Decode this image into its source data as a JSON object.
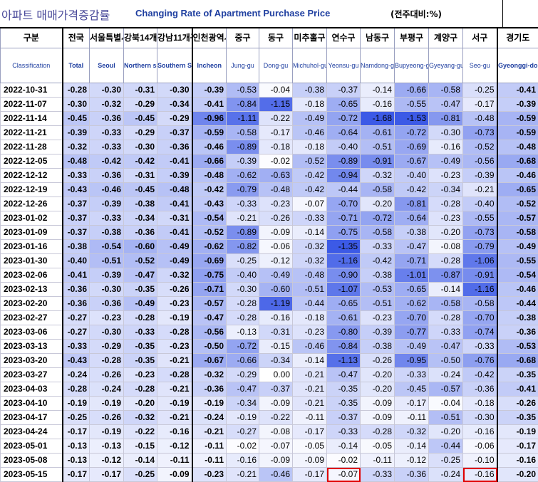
{
  "title": {
    "korean": "아파트 매매가격증감률",
    "english": "Changing Rate of Apartment Purchase Price",
    "unit": "(전주대비:%)"
  },
  "columns": [
    {
      "ko": "구분",
      "en": "Classification"
    },
    {
      "ko": "전국",
      "en": "Total"
    },
    {
      "ko": "서울특별시",
      "en": "Seoul"
    },
    {
      "ko": "강북14개구",
      "en": "Northern seoul"
    },
    {
      "ko": "강남11개구",
      "en": "Southern Seoul"
    },
    {
      "ko": "인천광역시",
      "en": "Incheon"
    },
    {
      "ko": "중구",
      "en": "Jung-gu"
    },
    {
      "ko": "동구",
      "en": "Dong-gu"
    },
    {
      "ko": "미추홀구",
      "en": "Michuhol-gu"
    },
    {
      "ko": "연수구",
      "en": "Yeonsu-gu"
    },
    {
      "ko": "남동구",
      "en": "Namdong-gu"
    },
    {
      "ko": "부평구",
      "en": "Bupyeong-gu"
    },
    {
      "ko": "계양구",
      "en": "Gyeyang-gu"
    },
    {
      "ko": "서구",
      "en": "Seo-gu"
    },
    {
      "ko": "경기도",
      "en": "Gyeonggi-do"
    }
  ],
  "rows": [
    {
      "date": "2022-10-31",
      "values": [
        "-0.28",
        "-0.30",
        "-0.31",
        "-0.30",
        "-0.39",
        "-0.53",
        "-0.04",
        "-0.38",
        "-0.37",
        "-0.14",
        "-0.66",
        "-0.58",
        "-0.25",
        "-0.41"
      ]
    },
    {
      "date": "2022-11-07",
      "values": [
        "-0.30",
        "-0.32",
        "-0.29",
        "-0.34",
        "-0.41",
        "-0.84",
        "-1.15",
        "-0.18",
        "-0.65",
        "-0.16",
        "-0.55",
        "-0.47",
        "-0.17",
        "-0.39"
      ]
    },
    {
      "date": "2022-11-14",
      "values": [
        "-0.45",
        "-0.36",
        "-0.45",
        "-0.29",
        "-0.96",
        "-1.11",
        "-0.22",
        "-0.49",
        "-0.72",
        "-1.68",
        "-1.53",
        "-0.81",
        "-0.48",
        "-0.59"
      ]
    },
    {
      "date": "2022-11-21",
      "values": [
        "-0.39",
        "-0.33",
        "-0.29",
        "-0.37",
        "-0.59",
        "-0.58",
        "-0.17",
        "-0.46",
        "-0.64",
        "-0.61",
        "-0.72",
        "-0.30",
        "-0.73",
        "-0.59"
      ]
    },
    {
      "date": "2022-11-28",
      "values": [
        "-0.32",
        "-0.33",
        "-0.30",
        "-0.36",
        "-0.46",
        "-0.89",
        "-0.18",
        "-0.18",
        "-0.40",
        "-0.51",
        "-0.69",
        "-0.16",
        "-0.52",
        "-0.48"
      ]
    },
    {
      "date": "2022-12-05",
      "values": [
        "-0.48",
        "-0.42",
        "-0.42",
        "-0.41",
        "-0.66",
        "-0.39",
        "-0.02",
        "-0.52",
        "-0.89",
        "-0.91",
        "-0.67",
        "-0.49",
        "-0.56",
        "-0.68"
      ]
    },
    {
      "date": "2022-12-12",
      "values": [
        "-0.33",
        "-0.36",
        "-0.31",
        "-0.39",
        "-0.48",
        "-0.62",
        "-0.63",
        "-0.42",
        "-0.94",
        "-0.32",
        "-0.40",
        "-0.23",
        "-0.39",
        "-0.46"
      ]
    },
    {
      "date": "2022-12-19",
      "values": [
        "-0.43",
        "-0.46",
        "-0.45",
        "-0.48",
        "-0.42",
        "-0.79",
        "-0.48",
        "-0.42",
        "-0.44",
        "-0.58",
        "-0.42",
        "-0.34",
        "-0.21",
        "-0.65"
      ]
    },
    {
      "date": "2022-12-26",
      "values": [
        "-0.37",
        "-0.39",
        "-0.38",
        "-0.41",
        "-0.43",
        "-0.33",
        "-0.23",
        "-0.07",
        "-0.70",
        "-0.20",
        "-0.81",
        "-0.28",
        "-0.40",
        "-0.52"
      ]
    },
    {
      "date": "2023-01-02",
      "values": [
        "-0.37",
        "-0.33",
        "-0.34",
        "-0.31",
        "-0.54",
        "-0.21",
        "-0.26",
        "-0.33",
        "-0.71",
        "-0.72",
        "-0.64",
        "-0.23",
        "-0.55",
        "-0.57"
      ]
    },
    {
      "date": "2023-01-09",
      "values": [
        "-0.37",
        "-0.38",
        "-0.36",
        "-0.41",
        "-0.52",
        "-0.89",
        "-0.09",
        "-0.14",
        "-0.75",
        "-0.58",
        "-0.38",
        "-0.20",
        "-0.73",
        "-0.58"
      ]
    },
    {
      "date": "2023-01-16",
      "values": [
        "-0.38",
        "-0.54",
        "-0.60",
        "-0.49",
        "-0.62",
        "-0.82",
        "-0.06",
        "-0.32",
        "-1.35",
        "-0.33",
        "-0.47",
        "-0.08",
        "-0.79",
        "-0.49"
      ]
    },
    {
      "date": "2023-01-30",
      "values": [
        "-0.40",
        "-0.51",
        "-0.52",
        "-0.49",
        "-0.69",
        "-0.25",
        "-0.12",
        "-0.32",
        "-1.16",
        "-0.42",
        "-0.71",
        "-0.28",
        "-1.06",
        "-0.55"
      ]
    },
    {
      "date": "2023-02-06",
      "values": [
        "-0.41",
        "-0.39",
        "-0.47",
        "-0.32",
        "-0.75",
        "-0.40",
        "-0.49",
        "-0.48",
        "-0.90",
        "-0.38",
        "-1.01",
        "-0.87",
        "-0.91",
        "-0.54"
      ]
    },
    {
      "date": "2023-02-13",
      "values": [
        "-0.36",
        "-0.30",
        "-0.35",
        "-0.26",
        "-0.71",
        "-0.30",
        "-0.60",
        "-0.51",
        "-1.07",
        "-0.53",
        "-0.65",
        "-0.14",
        "-1.16",
        "-0.46"
      ]
    },
    {
      "date": "2023-02-20",
      "values": [
        "-0.36",
        "-0.36",
        "-0.49",
        "-0.23",
        "-0.57",
        "-0.28",
        "-1.19",
        "-0.44",
        "-0.65",
        "-0.51",
        "-0.62",
        "-0.58",
        "-0.58",
        "-0.44"
      ]
    },
    {
      "date": "2023-02-27",
      "values": [
        "-0.27",
        "-0.23",
        "-0.28",
        "-0.19",
        "-0.47",
        "-0.28",
        "-0.16",
        "-0.18",
        "-0.61",
        "-0.23",
        "-0.70",
        "-0.28",
        "-0.70",
        "-0.38"
      ]
    },
    {
      "date": "2023-03-06",
      "values": [
        "-0.27",
        "-0.30",
        "-0.33",
        "-0.28",
        "-0.56",
        "-0.13",
        "-0.31",
        "-0.23",
        "-0.80",
        "-0.39",
        "-0.77",
        "-0.33",
        "-0.74",
        "-0.36"
      ]
    },
    {
      "date": "2023-03-13",
      "values": [
        "-0.33",
        "-0.29",
        "-0.35",
        "-0.23",
        "-0.50",
        "-0.72",
        "-0.15",
        "-0.46",
        "-0.84",
        "-0.38",
        "-0.49",
        "-0.47",
        "-0.33",
        "-0.53"
      ]
    },
    {
      "date": "2023-03-20",
      "values": [
        "-0.43",
        "-0.28",
        "-0.35",
        "-0.21",
        "-0.67",
        "-0.66",
        "-0.34",
        "-0.14",
        "-1.13",
        "-0.26",
        "-0.95",
        "-0.50",
        "-0.76",
        "-0.68"
      ]
    },
    {
      "date": "2023-03-27",
      "values": [
        "-0.24",
        "-0.26",
        "-0.23",
        "-0.28",
        "-0.32",
        "-0.29",
        "0.00",
        "-0.21",
        "-0.47",
        "-0.20",
        "-0.33",
        "-0.24",
        "-0.42",
        "-0.35"
      ]
    },
    {
      "date": "2023-04-03",
      "values": [
        "-0.28",
        "-0.24",
        "-0.28",
        "-0.21",
        "-0.36",
        "-0.47",
        "-0.37",
        "-0.21",
        "-0.35",
        "-0.20",
        "-0.45",
        "-0.57",
        "-0.36",
        "-0.41"
      ]
    },
    {
      "date": "2023-04-10",
      "values": [
        "-0.19",
        "-0.19",
        "-0.20",
        "-0.19",
        "-0.19",
        "-0.34",
        "-0.09",
        "-0.21",
        "-0.35",
        "-0.09",
        "-0.17",
        "-0.04",
        "-0.18",
        "-0.26"
      ]
    },
    {
      "date": "2023-04-17",
      "values": [
        "-0.25",
        "-0.26",
        "-0.32",
        "-0.21",
        "-0.24",
        "-0.19",
        "-0.22",
        "-0.11",
        "-0.37",
        "-0.09",
        "-0.11",
        "-0.51",
        "-0.30",
        "-0.35"
      ]
    },
    {
      "date": "2023-04-24",
      "values": [
        "-0.17",
        "-0.19",
        "-0.22",
        "-0.16",
        "-0.21",
        "-0.27",
        "-0.08",
        "-0.17",
        "-0.33",
        "-0.28",
        "-0.32",
        "-0.20",
        "-0.16",
        "-0.19"
      ]
    },
    {
      "date": "2023-05-01",
      "values": [
        "-0.13",
        "-0.13",
        "-0.15",
        "-0.12",
        "-0.11",
        "-0.02",
        "-0.07",
        "-0.05",
        "-0.14",
        "-0.05",
        "-0.14",
        "-0.44",
        "-0.06",
        "-0.17"
      ]
    },
    {
      "date": "2023-05-08",
      "values": [
        "-0.13",
        "-0.12",
        "-0.14",
        "-0.11",
        "-0.11",
        "-0.16",
        "-0.09",
        "-0.09",
        "-0.02",
        "-0.11",
        "-0.12",
        "-0.25",
        "-0.10",
        "-0.16"
      ]
    },
    {
      "date": "2023-05-15",
      "values": [
        "-0.17",
        "-0.17",
        "-0.25",
        "-0.09",
        "-0.23",
        "-0.21",
        "-0.46",
        "-0.17",
        "-0.07",
        "-0.33",
        "-0.36",
        "-0.24",
        "-0.16",
        "-0.20"
      ]
    }
  ],
  "highlighted_cells": [
    {
      "date": "2023-05-15",
      "column": "연수구"
    },
    {
      "date": "2023-05-15",
      "column": "서구"
    }
  ],
  "colors": {
    "header_text": "#1f3fa0",
    "scale_light": "#ffffff",
    "scale_dark": "#3c5ae6",
    "highlight_border": "#e00000"
  }
}
